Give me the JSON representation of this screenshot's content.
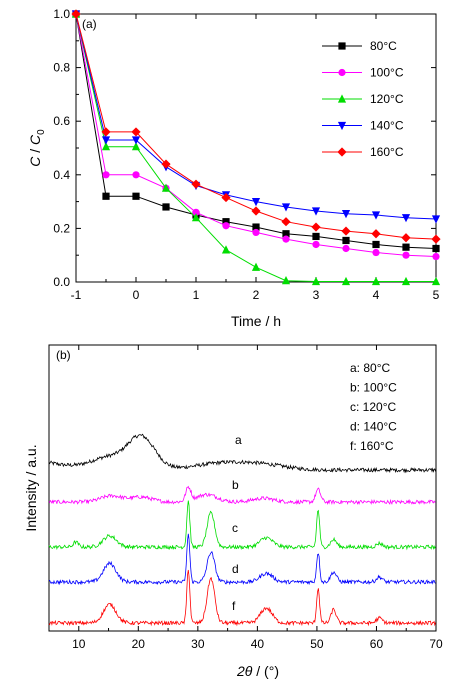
{
  "chart_data": [
    {
      "type": "line",
      "panel_label": "(a)",
      "xlabel": "Time / h",
      "ylabel_main": "C",
      "ylabel_sep": " / ",
      "ylabel_sym": "C",
      "ylabel_sub": "0",
      "xlim": [
        -1,
        5
      ],
      "ylim": [
        0,
        1.0
      ],
      "xticks": [
        -1,
        0,
        1,
        2,
        3,
        4,
        5
      ],
      "xtick_labels": [
        "-1",
        "0",
        "1",
        "2",
        "3",
        "4",
        "5"
      ],
      "yticks": [
        0,
        0.2,
        0.4,
        0.6,
        0.8,
        1.0
      ],
      "ytick_labels": [
        "0.0",
        "0.2",
        "0.4",
        "0.6",
        "0.8",
        "1.0"
      ],
      "legend_position": "top-right",
      "x": [
        -1,
        -0.5,
        0,
        0.5,
        1,
        1.5,
        2,
        2.5,
        3,
        3.5,
        4,
        4.5,
        5
      ],
      "series": [
        {
          "name": "80°C",
          "color": "#000000",
          "marker": "square",
          "values": [
            1.0,
            0.32,
            0.32,
            0.28,
            0.25,
            0.225,
            0.205,
            0.18,
            0.17,
            0.155,
            0.14,
            0.13,
            0.125
          ]
        },
        {
          "name": "100°C",
          "color": "#ff00ff",
          "marker": "circle",
          "values": [
            1.0,
            0.4,
            0.4,
            0.35,
            0.26,
            0.21,
            0.185,
            0.16,
            0.14,
            0.125,
            0.11,
            0.1,
            0.095
          ]
        },
        {
          "name": "120°C",
          "color": "#00dd00",
          "marker": "triangle-up",
          "values": [
            1.0,
            0.505,
            0.505,
            0.35,
            0.24,
            0.12,
            0.055,
            0.005,
            0.002,
            0.002,
            0.002,
            0.002,
            0.002
          ]
        },
        {
          "name": "140°C",
          "color": "#0000ff",
          "marker": "triangle-down",
          "values": [
            1.0,
            0.53,
            0.53,
            0.43,
            0.36,
            0.325,
            0.3,
            0.28,
            0.265,
            0.255,
            0.25,
            0.24,
            0.235
          ]
        },
        {
          "name": "160°C",
          "color": "#ff0000",
          "marker": "diamond",
          "values": [
            1.0,
            0.56,
            0.56,
            0.44,
            0.365,
            0.315,
            0.265,
            0.225,
            0.205,
            0.19,
            0.18,
            0.165,
            0.16
          ]
        }
      ]
    },
    {
      "type": "line",
      "panel_label": "(b)",
      "xlabel_sym": "2θ",
      "xlabel_rest": " / (°)",
      "ylabel": "Intensity / a.u.",
      "xlim": [
        5,
        70
      ],
      "xticks": [
        10,
        20,
        30,
        40,
        50,
        60,
        70
      ],
      "xtick_labels": [
        "10",
        "20",
        "30",
        "40",
        "50",
        "60",
        "70"
      ],
      "y_ticks_shown": false,
      "legend_position": "top-right",
      "legend_entries": [
        "a: 80°C",
        "b: 100°C",
        "c: 120°C",
        "d: 140°C",
        "f: 160°C"
      ],
      "series": [
        {
          "letter": "a",
          "name": "80°C",
          "color": "#000000",
          "baseline": 0.0,
          "peaks": [
            {
              "x": 20.5,
              "h": 0.52,
              "w": 3.2
            },
            {
              "x": 15,
              "h": 0.18,
              "w": 4
            },
            {
              "x": 35,
              "h": 0.12,
              "w": 7
            },
            {
              "x": 42,
              "h": 0.05,
              "w": 5
            }
          ]
        },
        {
          "letter": "b",
          "name": "100°C",
          "color": "#ff00ff",
          "baseline": 0.0,
          "peaks": [
            {
              "x": 28.4,
              "h": 0.22,
              "w": 0.6
            },
            {
              "x": 31.5,
              "h": 0.12,
              "w": 2.5
            },
            {
              "x": 15.5,
              "h": 0.1,
              "w": 2.5
            },
            {
              "x": 20.5,
              "h": 0.08,
              "w": 2.5
            },
            {
              "x": 50.2,
              "h": 0.2,
              "w": 0.6
            },
            {
              "x": 41,
              "h": 0.06,
              "w": 2.5
            }
          ]
        },
        {
          "letter": "c",
          "name": "120°C",
          "color": "#00dd00",
          "baseline": 0.0,
          "peaks": [
            {
              "x": 28.4,
              "h": 0.75,
              "w": 0.35
            },
            {
              "x": 32.2,
              "h": 0.55,
              "w": 0.9
            },
            {
              "x": 15.2,
              "h": 0.18,
              "w": 1.6
            },
            {
              "x": 9.5,
              "h": 0.08,
              "w": 0.6
            },
            {
              "x": 41.5,
              "h": 0.15,
              "w": 1.5
            },
            {
              "x": 50.2,
              "h": 0.6,
              "w": 0.35
            },
            {
              "x": 52.8,
              "h": 0.12,
              "w": 0.7
            },
            {
              "x": 60.5,
              "h": 0.06,
              "w": 0.7
            }
          ]
        },
        {
          "letter": "d",
          "name": "140°C",
          "color": "#0000ff",
          "baseline": 0.0,
          "peaks": [
            {
              "x": 28.4,
              "h": 0.78,
              "w": 0.35
            },
            {
              "x": 32.2,
              "h": 0.48,
              "w": 0.9
            },
            {
              "x": 15.2,
              "h": 0.3,
              "w": 1.5
            },
            {
              "x": 41.5,
              "h": 0.14,
              "w": 1.5
            },
            {
              "x": 50.2,
              "h": 0.48,
              "w": 0.35
            },
            {
              "x": 52.8,
              "h": 0.16,
              "w": 0.7
            },
            {
              "x": 60.5,
              "h": 0.08,
              "w": 0.7
            }
          ]
        },
        {
          "letter": "f",
          "name": "160°C",
          "color": "#ff0000",
          "baseline": 0.0,
          "peaks": [
            {
              "x": 28.4,
              "h": 0.88,
              "w": 0.35
            },
            {
              "x": 32.2,
              "h": 0.72,
              "w": 0.9
            },
            {
              "x": 15.2,
              "h": 0.3,
              "w": 1.5
            },
            {
              "x": 41.5,
              "h": 0.24,
              "w": 1.4
            },
            {
              "x": 50.2,
              "h": 0.56,
              "w": 0.35
            },
            {
              "x": 52.8,
              "h": 0.22,
              "w": 0.6
            },
            {
              "x": 60.5,
              "h": 0.08,
              "w": 0.7
            }
          ]
        }
      ]
    }
  ]
}
